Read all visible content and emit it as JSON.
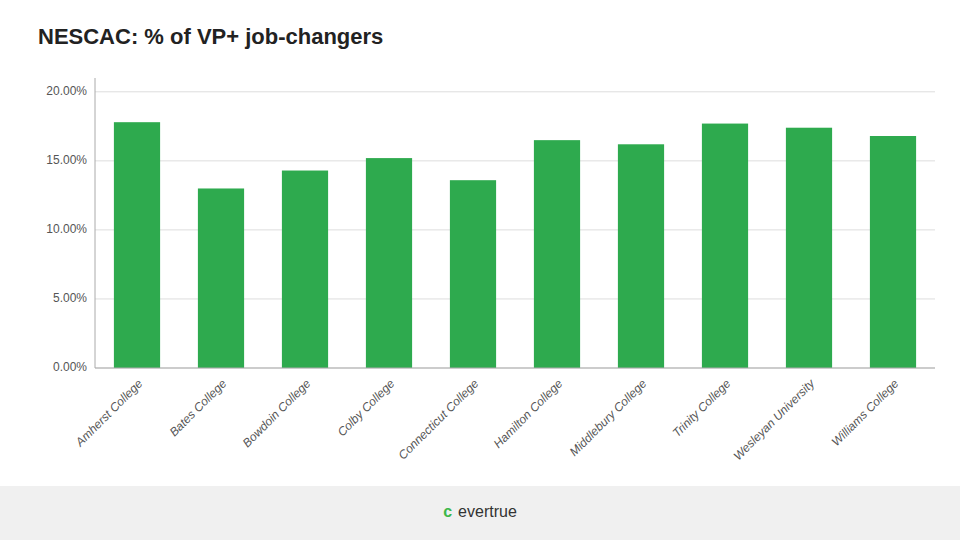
{
  "chart_data": {
    "type": "bar",
    "title": "NESCAC: % of VP+ job-changers",
    "categories": [
      "Amherst College",
      "Bates College",
      "Bowdoin College",
      "Colby College",
      "Connecticut College",
      "Hamilton College",
      "Middlebury College",
      "Trinity College",
      "Wesleyan University",
      "Williams College"
    ],
    "values": [
      0.178,
      0.13,
      0.143,
      0.152,
      0.136,
      0.165,
      0.162,
      0.177,
      0.174,
      0.168
    ],
    "color": "#2eaa4e",
    "ylim": [
      0,
      0.21
    ],
    "yticks": [
      {
        "value": 0.0,
        "label": "0.00%"
      },
      {
        "value": 0.05,
        "label": "5.00%"
      },
      {
        "value": 0.1,
        "label": "10.00%"
      },
      {
        "value": 0.15,
        "label": "15.00%"
      },
      {
        "value": 0.2,
        "label": "20.00%"
      }
    ],
    "grid": true,
    "annotations": [
      {
        "text": "ᴄ",
        "color": "#3cb84a"
      },
      {
        "text": "evertrue",
        "color": "#333333"
      }
    ]
  }
}
